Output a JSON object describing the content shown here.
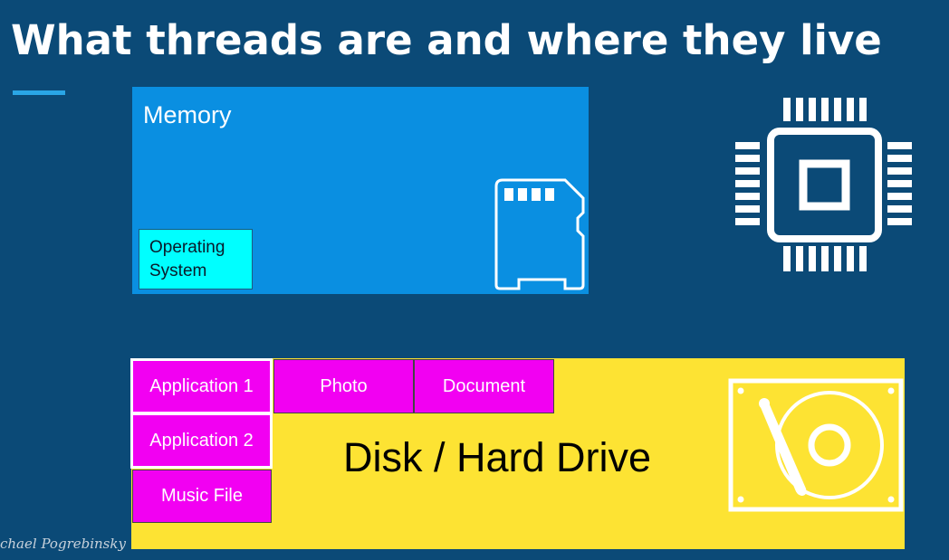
{
  "slide": {
    "title": "What threads are and where they live",
    "colors": {
      "background": "#0b4a77",
      "memory": "#0a8fe1",
      "operating_system": "#00ffff",
      "disk": "#fde333",
      "application": "#f200f2",
      "accent": "#2aa6e6"
    }
  },
  "memory": {
    "label": "Memory",
    "operating_system": {
      "line1": "Operating",
      "line2": "System"
    },
    "icon": "sd-card-icon"
  },
  "cpu": {
    "icon": "cpu-chip-icon"
  },
  "disk": {
    "label": "Disk / Hard Drive",
    "icon": "hard-drive-icon",
    "items": {
      "application_1": "Application 1",
      "application_2": "Application 2",
      "photo": "Photo",
      "document": "Document",
      "music_file": "Music File"
    }
  },
  "watermark": "chael Pogrebinsky"
}
